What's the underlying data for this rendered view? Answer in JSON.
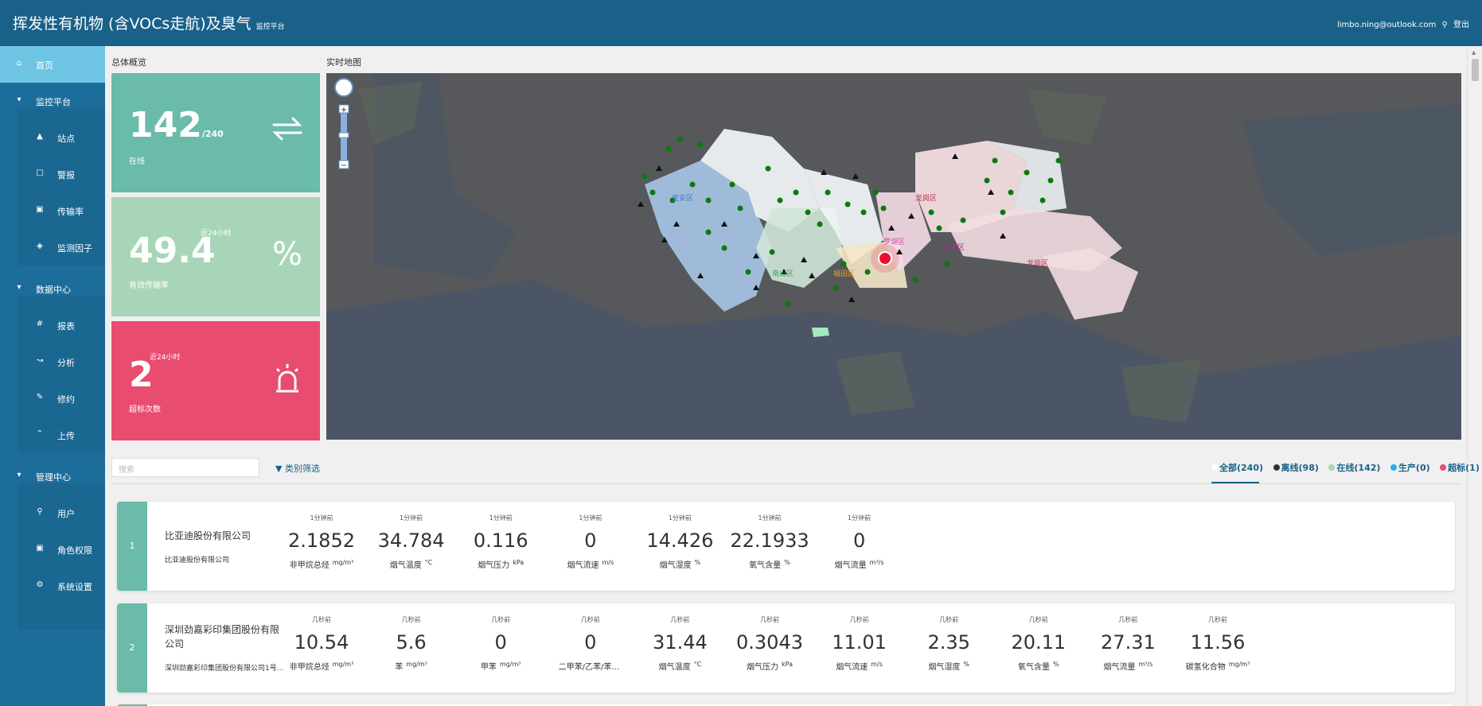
{
  "header": {
    "title": "挥发性有机物 (含VOCs走航)及臭气",
    "subtitle": "监控平台",
    "user_email": "limbo.ning@outlook.com",
    "logout": "登出"
  },
  "sidebar": {
    "items": [
      {
        "label": "首页",
        "icon": "home-icon",
        "level": "top",
        "active": true
      },
      {
        "label": "监控平台",
        "icon": "caret-down-icon",
        "level": "top"
      },
      {
        "label": "站点",
        "icon": "station-icon",
        "level": "sub"
      },
      {
        "label": "警报",
        "icon": "alarm-icon",
        "level": "sub"
      },
      {
        "label": "传输率",
        "icon": "transmission-icon",
        "level": "sub"
      },
      {
        "label": "监测因子",
        "icon": "tag-icon",
        "level": "sub"
      },
      {
        "label": "数据中心",
        "icon": "caret-down-icon",
        "level": "top"
      },
      {
        "label": "报表",
        "icon": "hash-icon",
        "level": "sub"
      },
      {
        "label": "分析",
        "icon": "chart-icon",
        "level": "sub"
      },
      {
        "label": "修约",
        "icon": "edit-icon",
        "level": "sub"
      },
      {
        "label": "上传",
        "icon": "upload-icon",
        "level": "sub"
      },
      {
        "label": "管理中心",
        "icon": "caret-down-icon",
        "level": "top"
      },
      {
        "label": "用户",
        "icon": "user-icon",
        "level": "sub"
      },
      {
        "label": "角色权限",
        "icon": "role-icon",
        "level": "sub"
      },
      {
        "label": "系统设置",
        "icon": "settings-icon",
        "level": "sub"
      }
    ]
  },
  "overview": {
    "label": "总体概览",
    "online": {
      "value": "142",
      "total": "/240",
      "label": "在线",
      "color": "#6abba9"
    },
    "transmission": {
      "value": "49.4",
      "tag": "近24小时",
      "label": "有效传输率",
      "symbol": "%",
      "color": "#a8d5b7"
    },
    "exceed": {
      "value": "2",
      "tag": "近24小时",
      "label": "超标次数",
      "color": "#e84c6e"
    }
  },
  "map": {
    "label": "实时地图",
    "districts": [
      "宝安区",
      "南山区",
      "福田区",
      "罗湖区",
      "盐田区",
      "龙岗区",
      "龙岗区"
    ]
  },
  "filters": {
    "search_placeholder": "搜索",
    "category_filter": "类别筛选",
    "status_tabs": [
      {
        "label": "全部(240)",
        "color": "#ffffff"
      },
      {
        "label": "离线(98)",
        "color": "#333333"
      },
      {
        "label": "在线(142)",
        "color": "#a8d5b7"
      },
      {
        "label": "生产(0)",
        "color": "#2ab0e8"
      },
      {
        "label": "超标(1)",
        "color": "#e84c6e"
      }
    ]
  },
  "stations": [
    {
      "index": "1",
      "name": "比亚迪股份有限公司",
      "subname": "比亚迪股份有限公司",
      "metrics": [
        {
          "time": "1分钟前",
          "value": "2.1852",
          "name": "非甲烷总烃",
          "unit": "mg/m³"
        },
        {
          "time": "1分钟前",
          "value": "34.784",
          "name": "烟气温度",
          "unit": "°C"
        },
        {
          "time": "1分钟前",
          "value": "0.116",
          "name": "烟气压力",
          "unit": "kPa"
        },
        {
          "time": "1分钟前",
          "value": "0",
          "name": "烟气流速",
          "unit": "m/s"
        },
        {
          "time": "1分钟前",
          "value": "14.426",
          "name": "烟气湿度",
          "unit": "%"
        },
        {
          "time": "1分钟前",
          "value": "22.1933",
          "name": "氧气含量",
          "unit": "%"
        },
        {
          "time": "1分钟前",
          "value": "0",
          "name": "烟气流量",
          "unit": "m³/s"
        }
      ]
    },
    {
      "index": "2",
      "name": "深圳劲嘉彩印集团股份有限公司",
      "subname": "深圳劲嘉彩印集团股份有限公司1号...",
      "metrics": [
        {
          "time": "几秒前",
          "value": "10.54",
          "name": "非甲烷总烃",
          "unit": "mg/m³"
        },
        {
          "time": "几秒前",
          "value": "5.6",
          "name": "苯",
          "unit": "mg/m³"
        },
        {
          "time": "几秒前",
          "value": "0",
          "name": "甲苯",
          "unit": "mg/m³"
        },
        {
          "time": "几秒前",
          "value": "0",
          "name": "二甲苯/乙苯/苯...",
          "unit": ""
        },
        {
          "time": "几秒前",
          "value": "31.44",
          "name": "烟气温度",
          "unit": "°C"
        },
        {
          "time": "几秒前",
          "value": "0.3043",
          "name": "烟气压力",
          "unit": "kPa"
        },
        {
          "time": "几秒前",
          "value": "11.01",
          "name": "烟气流速",
          "unit": "m/s"
        },
        {
          "time": "几秒前",
          "value": "2.35",
          "name": "烟气湿度",
          "unit": "%"
        },
        {
          "time": "几秒前",
          "value": "20.11",
          "name": "氧气含量",
          "unit": "%"
        },
        {
          "time": "几秒前",
          "value": "27.31",
          "name": "烟气流量",
          "unit": "m³/s"
        },
        {
          "time": "几秒前",
          "value": "11.56",
          "name": "碳氢化合物",
          "unit": "mg/m³"
        }
      ]
    }
  ]
}
